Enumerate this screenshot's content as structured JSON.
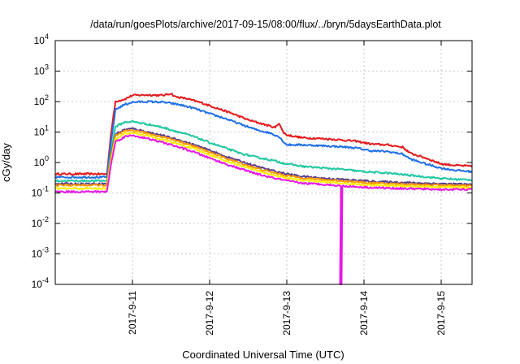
{
  "chart_data": {
    "type": "line",
    "title": "/data/run/goesPlots/archive/2017-09-15/08:00/flux/../bryn/5daysEarthData.plot",
    "xlabel": "Coordinated Universal Time (UTC)",
    "ylabel": "cGy/day",
    "yscale": "log",
    "ylim": [
      0.0001,
      10000
    ],
    "xlim": [
      0,
      5.4
    ],
    "x_unit": "days after 2017-09-10 00:00 UTC",
    "grid": true,
    "legend": "none",
    "y_ticks": [
      {
        "base": "10",
        "exp": "4",
        "value": 10000
      },
      {
        "base": "10",
        "exp": "3",
        "value": 1000
      },
      {
        "base": "10",
        "exp": "2",
        "value": 100
      },
      {
        "base": "10",
        "exp": "1",
        "value": 10
      },
      {
        "base": "10",
        "exp": "0",
        "value": 1
      },
      {
        "base": "10",
        "exp": "-1",
        "value": 0.1
      },
      {
        "base": "10",
        "exp": "-2",
        "value": 0.01
      },
      {
        "base": "10",
        "exp": "-3",
        "value": 0.001
      },
      {
        "base": "10",
        "exp": "-4",
        "value": 0.0001
      }
    ],
    "x_ticks": [
      {
        "label": "2017-9-11",
        "value": 1
      },
      {
        "label": "2017-9-12",
        "value": 2
      },
      {
        "label": "2017-9-13",
        "value": 3
      },
      {
        "label": "2017-9-14",
        "value": 4
      },
      {
        "label": "2017-9-15",
        "value": 5
      }
    ],
    "series": [
      {
        "color": "#e41a1c",
        "points": [
          [
            0,
            0.42
          ],
          [
            0.3,
            0.42
          ],
          [
            0.67,
            0.42
          ],
          [
            0.72,
            8
          ],
          [
            0.78,
            100
          ],
          [
            0.9,
            120
          ],
          [
            1.0,
            160
          ],
          [
            1.2,
            165
          ],
          [
            1.4,
            160
          ],
          [
            1.5,
            185
          ],
          [
            1.55,
            145
          ],
          [
            1.7,
            125
          ],
          [
            1.9,
            90
          ],
          [
            2.1,
            60
          ],
          [
            2.3,
            40
          ],
          [
            2.5,
            25
          ],
          [
            2.7,
            18
          ],
          [
            2.85,
            14
          ],
          [
            2.9,
            20
          ],
          [
            2.95,
            10
          ],
          [
            3.0,
            8
          ],
          [
            3.2,
            6.5
          ],
          [
            3.5,
            6
          ],
          [
            3.7,
            5.5
          ],
          [
            3.9,
            5
          ],
          [
            4.1,
            4
          ],
          [
            4.3,
            3.8
          ],
          [
            4.5,
            3.2
          ],
          [
            4.6,
            2
          ],
          [
            4.8,
            1.4
          ],
          [
            5.0,
            0.9
          ],
          [
            5.2,
            0.8
          ],
          [
            5.4,
            0.75
          ]
        ]
      },
      {
        "color": "#1f6fe8",
        "points": [
          [
            0,
            0.33
          ],
          [
            0.3,
            0.33
          ],
          [
            0.67,
            0.33
          ],
          [
            0.72,
            4
          ],
          [
            0.78,
            55
          ],
          [
            0.9,
            80
          ],
          [
            1.0,
            95
          ],
          [
            1.2,
            100
          ],
          [
            1.4,
            95
          ],
          [
            1.6,
            80
          ],
          [
            1.8,
            60
          ],
          [
            2.0,
            40
          ],
          [
            2.2,
            28
          ],
          [
            2.4,
            18
          ],
          [
            2.6,
            12
          ],
          [
            2.8,
            9
          ],
          [
            2.9,
            7
          ],
          [
            2.95,
            5
          ],
          [
            3.0,
            3.8
          ],
          [
            3.2,
            3.8
          ],
          [
            3.5,
            3.5
          ],
          [
            3.7,
            3.3
          ],
          [
            3.9,
            3.0
          ],
          [
            4.1,
            2.4
          ],
          [
            4.3,
            2.3
          ],
          [
            4.5,
            1.9
          ],
          [
            4.6,
            1.3
          ],
          [
            4.8,
            0.9
          ],
          [
            5.0,
            0.65
          ],
          [
            5.2,
            0.55
          ],
          [
            5.4,
            0.5
          ]
        ]
      },
      {
        "color": "#1fc8a0",
        "points": [
          [
            0,
            0.25
          ],
          [
            0.3,
            0.25
          ],
          [
            0.67,
            0.25
          ],
          [
            0.72,
            2
          ],
          [
            0.78,
            15
          ],
          [
            0.9,
            21
          ],
          [
            1.0,
            22
          ],
          [
            1.2,
            18
          ],
          [
            1.4,
            14
          ],
          [
            1.6,
            10
          ],
          [
            1.8,
            7
          ],
          [
            2.0,
            4.5
          ],
          [
            2.2,
            3
          ],
          [
            2.4,
            2
          ],
          [
            2.6,
            1.5
          ],
          [
            2.8,
            1.2
          ],
          [
            3.0,
            0.9
          ],
          [
            3.2,
            0.75
          ],
          [
            3.5,
            0.65
          ],
          [
            3.7,
            0.6
          ],
          [
            4.0,
            0.5
          ],
          [
            4.3,
            0.45
          ],
          [
            4.6,
            0.38
          ],
          [
            5.0,
            0.3
          ],
          [
            5.2,
            0.28
          ],
          [
            5.4,
            0.27
          ]
        ]
      },
      {
        "color": "#5a3c8c",
        "points": [
          [
            0,
            0.2
          ],
          [
            0.3,
            0.2
          ],
          [
            0.67,
            0.2
          ],
          [
            0.72,
            1.5
          ],
          [
            0.78,
            8.5
          ],
          [
            0.9,
            12
          ],
          [
            1.0,
            13
          ],
          [
            1.2,
            10
          ],
          [
            1.4,
            7.5
          ],
          [
            1.6,
            5.5
          ],
          [
            1.8,
            3.8
          ],
          [
            2.0,
            2.5
          ],
          [
            2.2,
            1.6
          ],
          [
            2.4,
            1.1
          ],
          [
            2.6,
            0.75
          ],
          [
            2.8,
            0.55
          ],
          [
            3.0,
            0.42
          ],
          [
            3.2,
            0.35
          ],
          [
            3.5,
            0.3
          ],
          [
            3.8,
            0.27
          ],
          [
            4.1,
            0.24
          ],
          [
            4.5,
            0.22
          ],
          [
            5.0,
            0.2
          ],
          [
            5.4,
            0.19
          ]
        ]
      },
      {
        "color": "#ff9900",
        "points": [
          [
            0,
            0.18
          ],
          [
            0.3,
            0.18
          ],
          [
            0.67,
            0.18
          ],
          [
            0.72,
            1.3
          ],
          [
            0.78,
            7.5
          ],
          [
            0.9,
            10.5
          ],
          [
            1.0,
            11.5
          ],
          [
            1.2,
            9
          ],
          [
            1.4,
            6.8
          ],
          [
            1.6,
            5
          ],
          [
            1.8,
            3.4
          ],
          [
            2.0,
            2.2
          ],
          [
            2.2,
            1.4
          ],
          [
            2.4,
            0.95
          ],
          [
            2.6,
            0.65
          ],
          [
            2.8,
            0.48
          ],
          [
            3.0,
            0.37
          ],
          [
            3.2,
            0.31
          ],
          [
            3.5,
            0.27
          ],
          [
            3.8,
            0.24
          ],
          [
            4.1,
            0.21
          ],
          [
            4.5,
            0.195
          ],
          [
            5.0,
            0.18
          ],
          [
            5.4,
            0.17
          ]
        ]
      },
      {
        "color": "#ffee00",
        "points": [
          [
            0,
            0.14
          ],
          [
            0.3,
            0.14
          ],
          [
            0.67,
            0.14
          ],
          [
            0.72,
            1.0
          ],
          [
            0.78,
            6
          ],
          [
            0.9,
            9
          ],
          [
            1.0,
            9.5
          ],
          [
            1.2,
            7.5
          ],
          [
            1.4,
            5.5
          ],
          [
            1.6,
            4
          ],
          [
            1.8,
            2.8
          ],
          [
            2.0,
            1.8
          ],
          [
            2.2,
            1.15
          ],
          [
            2.4,
            0.8
          ],
          [
            2.6,
            0.55
          ],
          [
            2.8,
            0.4
          ],
          [
            3.0,
            0.31
          ],
          [
            3.2,
            0.26
          ],
          [
            3.5,
            0.23
          ],
          [
            3.8,
            0.2
          ],
          [
            4.1,
            0.18
          ],
          [
            4.5,
            0.17
          ],
          [
            5.0,
            0.155
          ],
          [
            5.4,
            0.15
          ]
        ]
      },
      {
        "color": "#e619e6",
        "points": [
          [
            0,
            0.11
          ],
          [
            0.3,
            0.11
          ],
          [
            0.67,
            0.11
          ],
          [
            0.72,
            0.8
          ],
          [
            0.78,
            4.8
          ],
          [
            0.9,
            7
          ],
          [
            1.0,
            7.8
          ],
          [
            1.2,
            6
          ],
          [
            1.4,
            4.5
          ],
          [
            1.6,
            3.2
          ],
          [
            1.8,
            2.2
          ],
          [
            2.0,
            1.4
          ],
          [
            2.2,
            0.9
          ],
          [
            2.4,
            0.62
          ],
          [
            2.6,
            0.43
          ],
          [
            2.8,
            0.32
          ],
          [
            3.0,
            0.25
          ],
          [
            3.2,
            0.21
          ],
          [
            3.5,
            0.19
          ],
          [
            3.7,
            0.17
          ],
          [
            3.69,
            0.0001
          ],
          [
            3.71,
            0.0001
          ],
          [
            3.72,
            0.17
          ],
          [
            4.1,
            0.15
          ],
          [
            4.5,
            0.14
          ],
          [
            5.0,
            0.13
          ],
          [
            5.4,
            0.13
          ]
        ]
      }
    ]
  }
}
